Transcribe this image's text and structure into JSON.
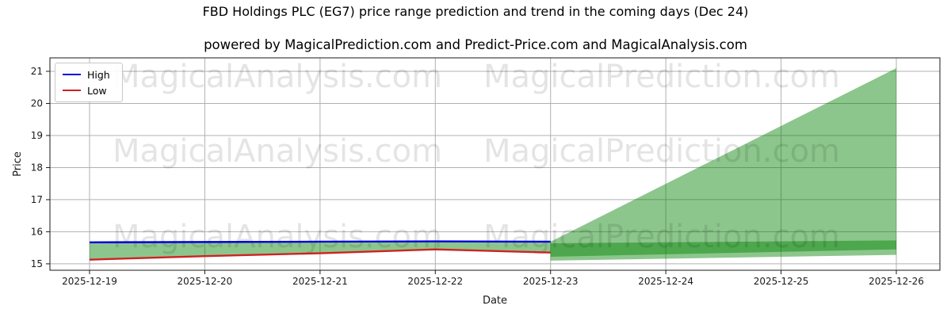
{
  "chart_data": {
    "type": "line",
    "title": "FBD Holdings PLC (EG7) price range prediction and trend in the coming days (Dec 24)",
    "subtitle": "powered by MagicalPrediction.com and Predict-Price.com and MagicalAnalysis.com",
    "xlabel": "Date",
    "ylabel": "Price",
    "x_categories": [
      "2025-12-19",
      "2025-12-20",
      "2025-12-21",
      "2025-12-22",
      "2025-12-23",
      "2025-12-24",
      "2025-12-25",
      "2025-12-26"
    ],
    "y_ticks": [
      15,
      16,
      17,
      18,
      19,
      20,
      21
    ],
    "ylim": [
      14.8,
      21.42
    ],
    "grid": true,
    "legend_position": "upper left",
    "series": [
      {
        "name": "High",
        "color": "#0000dd",
        "x": [
          0,
          1,
          2,
          3,
          4
        ],
        "values": [
          15.67,
          15.68,
          15.69,
          15.7,
          15.69
        ]
      },
      {
        "name": "Low",
        "color": "#cf2222",
        "x": [
          0,
          1,
          2,
          3,
          4
        ],
        "values": [
          15.13,
          15.24,
          15.33,
          15.45,
          15.35
        ]
      }
    ],
    "fills": [
      {
        "name": "historical-range",
        "color": "#008000",
        "opacity": 0.45,
        "x": [
          0,
          1,
          2,
          3,
          4
        ],
        "upper": [
          15.67,
          15.68,
          15.69,
          15.7,
          15.69
        ],
        "lower": [
          15.13,
          15.24,
          15.33,
          15.45,
          15.35
        ]
      },
      {
        "name": "forecast-trend-range",
        "color": "#008000",
        "opacity": 0.45,
        "x": [
          4,
          7
        ],
        "upper": [
          15.69,
          21.1
        ],
        "lower": [
          15.22,
          15.45
        ]
      },
      {
        "name": "forecast-price-range",
        "color": "#008000",
        "opacity": 0.45,
        "x": [
          4,
          7
        ],
        "upper": [
          15.64,
          15.73
        ],
        "lower": [
          15.1,
          15.28
        ]
      }
    ],
    "watermark": {
      "texts": [
        "MagicalAnalysis.com",
        "MagicalPrediction.com"
      ],
      "color": "rgba(0,0,0,0.105)"
    }
  }
}
